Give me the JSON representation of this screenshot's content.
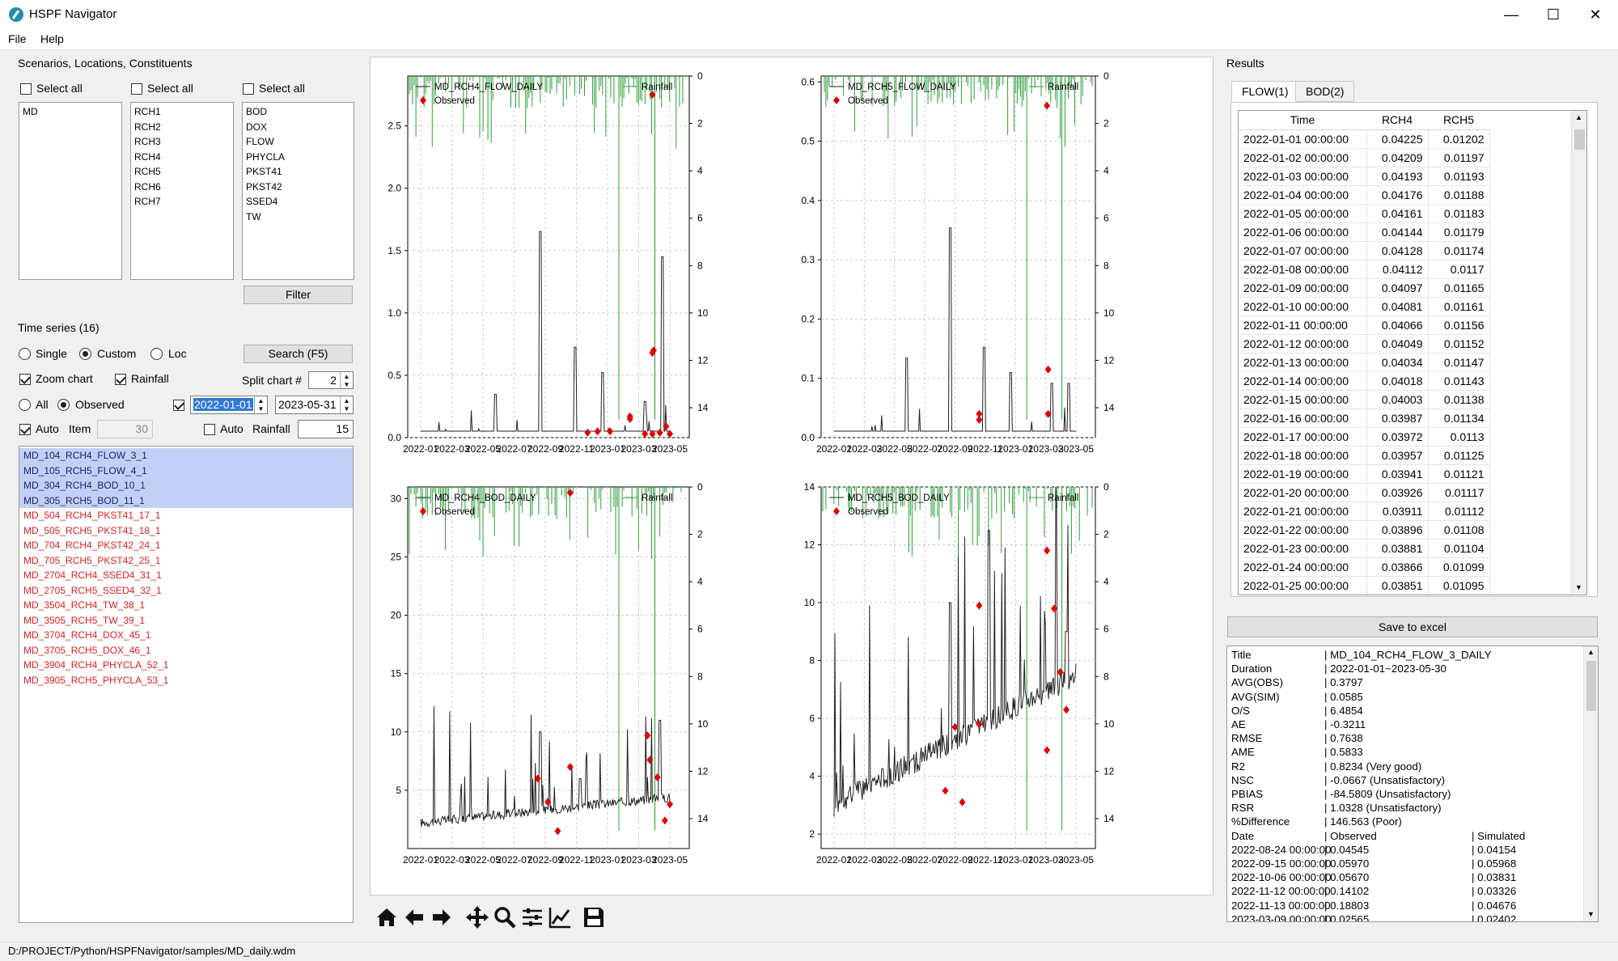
{
  "app": {
    "title": "HSPF Navigator"
  },
  "window_controls": {
    "minimize": "—",
    "maximize": "☐",
    "close": "✕"
  },
  "menu": [
    "File",
    "Help"
  ],
  "scenarios": {
    "title": "Scenarios, Locations, Constituents",
    "select_all": "Select all",
    "scenarios": [
      "MD"
    ],
    "locations": [
      "RCH1",
      "RCH2",
      "RCH3",
      "RCH4",
      "RCH5",
      "RCH6",
      "RCH7"
    ],
    "constituents": [
      "BOD",
      "DOX",
      "FLOW",
      "PHYCLA",
      "PKST41",
      "PKST42",
      "SSED4",
      "TW"
    ],
    "filter": "Filter"
  },
  "timeseries": {
    "title": "Time series (16)",
    "radios_mode": [
      "Single",
      "Custom",
      "Loc"
    ],
    "search": "Search (F5)",
    "zoom_chart": "Zoom chart",
    "rainfall": "Rainfall",
    "split_chart_label": "Split chart #",
    "split_chart_value": "2",
    "radios_data": [
      "All",
      "Observed"
    ],
    "start_date": "2022-01-01",
    "end_date": "2023-05-31",
    "auto": "Auto",
    "item": "Item",
    "item_value": "30",
    "auto2": "Auto",
    "rainfall2": "Rainfall",
    "rainfall_value": "15",
    "items": [
      {
        "name": "MD_104_RCH4_FLOW_3_1",
        "state": "sel"
      },
      {
        "name": "MD_105_RCH5_FLOW_4_1",
        "state": "sel"
      },
      {
        "name": "MD_304_RCH4_BOD_10_1",
        "state": "sel"
      },
      {
        "name": "MD_305_RCH5_BOD_11_1",
        "state": "sel"
      },
      {
        "name": "MD_504_RCH4_PKST41_17_1",
        "state": "red"
      },
      {
        "name": "MD_505_RCH5_PKST41_18_1",
        "state": "red"
      },
      {
        "name": "MD_704_RCH4_PKST42_24_1",
        "state": "red"
      },
      {
        "name": "MD_705_RCH5_PKST42_25_1",
        "state": "red"
      },
      {
        "name": "MD_2704_RCH4_SSED4_31_1",
        "state": "red"
      },
      {
        "name": "MD_2705_RCH5_SSED4_32_1",
        "state": "red"
      },
      {
        "name": "MD_3504_RCH4_TW_38_1",
        "state": "red"
      },
      {
        "name": "MD_3505_RCH5_TW_39_1",
        "state": "red"
      },
      {
        "name": "MD_3704_RCH4_DOX_45_1",
        "state": "red"
      },
      {
        "name": "MD_3705_RCH5_DOX_46_1",
        "state": "red"
      },
      {
        "name": "MD_3904_RCH4_PHYCLA_52_1",
        "state": "red"
      },
      {
        "name": "MD_3905_RCH5_PHYCLA_53_1",
        "state": "red"
      }
    ]
  },
  "chart_data": [
    {
      "type": "line",
      "series": [
        {
          "name": "MD_RCH4_FLOW_DAILY"
        },
        {
          "name": "Observed"
        },
        {
          "name": "Rainfall"
        }
      ],
      "ylim": [
        0,
        2.9
      ],
      "yticks": [
        "0.0",
        "0.5",
        "1.0",
        "1.5",
        "2.0",
        "2.5"
      ],
      "y2ticks": [
        "0",
        "2",
        "4",
        "6",
        "8",
        "10",
        "12",
        "14"
      ],
      "xticks": [
        "2022-01",
        "2022-03",
        "2022-05",
        "2022-07",
        "2022-09",
        "2022-11",
        "2023-01",
        "2023-03",
        "2023-05"
      ],
      "observed": [
        [
          0.67,
          0.04
        ],
        [
          0.71,
          0.05
        ],
        [
          0.76,
          0.05
        ],
        [
          0.84,
          0.17
        ],
        [
          0.84,
          0.15
        ],
        [
          0.9,
          0.03
        ],
        [
          0.93,
          0.03
        ],
        [
          0.935,
          0.7
        ],
        [
          0.93,
          0.68
        ],
        [
          0.96,
          0.04
        ],
        [
          0.985,
          0.09
        ],
        [
          1.0,
          0.03
        ],
        [
          0.93,
          2.75
        ]
      ]
    },
    {
      "type": "line",
      "series": [
        {
          "name": "MD_RCH5_FLOW_DAILY"
        },
        {
          "name": "Observed"
        },
        {
          "name": "Rainfall"
        }
      ],
      "ylim": [
        0,
        0.61
      ],
      "yticks": [
        "0.0",
        "0.1",
        "0.2",
        "0.3",
        "0.4",
        "0.5",
        "0.6"
      ],
      "y2ticks": [
        "0",
        "2",
        "4",
        "6",
        "8",
        "10",
        "12",
        "14"
      ],
      "xticks": [
        "2022-01",
        "2022-03",
        "2022-05",
        "2022-07",
        "2022-09",
        "2022-11",
        "2023-01",
        "2023-03",
        "2023-05"
      ],
      "observed": [
        [
          0.6,
          0.04
        ],
        [
          0.6,
          0.03
        ],
        [
          0.885,
          0.115
        ],
        [
          0.885,
          0.04
        ],
        [
          0.88,
          0.56
        ]
      ]
    },
    {
      "type": "line",
      "series": [
        {
          "name": "MD_RCH4_BOD_DAILY"
        },
        {
          "name": "Observed"
        },
        {
          "name": "Rainfall"
        }
      ],
      "ylim": [
        0,
        31
      ],
      "yticks": [
        "5",
        "10",
        "15",
        "20",
        "25",
        "30"
      ],
      "y2ticks": [
        "0",
        "2",
        "4",
        "6",
        "8",
        "10",
        "12",
        "14"
      ],
      "xticks": [
        "2022-01",
        "2022-03",
        "2022-05",
        "2022-07",
        "2022-09",
        "2022-11",
        "2023-01",
        "2023-03",
        "2023-05"
      ],
      "observed": [
        [
          0.47,
          6
        ],
        [
          0.51,
          4
        ],
        [
          0.55,
          1.5
        ],
        [
          0.6,
          7
        ],
        [
          0.6,
          30.5
        ],
        [
          0.91,
          9.7
        ],
        [
          0.92,
          7.6
        ],
        [
          0.95,
          6.1
        ],
        [
          0.98,
          2.4
        ],
        [
          1.0,
          3.8
        ]
      ]
    },
    {
      "type": "line",
      "series": [
        {
          "name": "MD_RCH5_BOD_DAILY"
        },
        {
          "name": "Observed"
        },
        {
          "name": "Rainfall"
        }
      ],
      "ylim": [
        1.5,
        14
      ],
      "yticks": [
        "2",
        "4",
        "6",
        "8",
        "10",
        "12",
        "14"
      ],
      "y2ticks": [
        "0",
        "2",
        "4",
        "6",
        "8",
        "10",
        "12",
        "14"
      ],
      "xticks": [
        "2022-01",
        "2022-03",
        "2022-05",
        "2022-07",
        "2022-09",
        "2022-11",
        "2023-01",
        "2023-03",
        "2023-05"
      ],
      "observed": [
        [
          0.46,
          3.5
        ],
        [
          0.5,
          5.7
        ],
        [
          0.53,
          3.1
        ],
        [
          0.6,
          5.8
        ],
        [
          0.6,
          9.9
        ],
        [
          0.88,
          11.8
        ],
        [
          0.88,
          4.9
        ],
        [
          0.91,
          9.8
        ],
        [
          0.935,
          7.6
        ],
        [
          0.96,
          6.3
        ]
      ]
    }
  ],
  "results": {
    "title": "Results",
    "tabs": [
      "FLOW(1)",
      "BOD(2)"
    ],
    "columns": [
      "Time",
      "RCH4",
      "RCH5"
    ],
    "rows": [
      [
        "2022-01-01 00:00:00",
        "0.04225",
        "0.01202"
      ],
      [
        "2022-01-02 00:00:00",
        "0.04209",
        "0.01197"
      ],
      [
        "2022-01-03 00:00:00",
        "0.04193",
        "0.01193"
      ],
      [
        "2022-01-04 00:00:00",
        "0.04176",
        "0.01188"
      ],
      [
        "2022-01-05 00:00:00",
        "0.04161",
        "0.01183"
      ],
      [
        "2022-01-06 00:00:00",
        "0.04144",
        "0.01179"
      ],
      [
        "2022-01-07 00:00:00",
        "0.04128",
        "0.01174"
      ],
      [
        "2022-01-08 00:00:00",
        "0.04112",
        "0.0117"
      ],
      [
        "2022-01-09 00:00:00",
        "0.04097",
        "0.01165"
      ],
      [
        "2022-01-10 00:00:00",
        "0.04081",
        "0.01161"
      ],
      [
        "2022-01-11 00:00:00",
        "0.04066",
        "0.01156"
      ],
      [
        "2022-01-12 00:00:00",
        "0.04049",
        "0.01152"
      ],
      [
        "2022-01-13 00:00:00",
        "0.04034",
        "0.01147"
      ],
      [
        "2022-01-14 00:00:00",
        "0.04018",
        "0.01143"
      ],
      [
        "2022-01-15 00:00:00",
        "0.04003",
        "0.01138"
      ],
      [
        "2022-01-16 00:00:00",
        "0.03987",
        "0.01134"
      ],
      [
        "2022-01-17 00:00:00",
        "0.03972",
        "0.0113"
      ],
      [
        "2022-01-18 00:00:00",
        "0.03957",
        "0.01125"
      ],
      [
        "2022-01-19 00:00:00",
        "0.03941",
        "0.01121"
      ],
      [
        "2022-01-20 00:00:00",
        "0.03926",
        "0.01117"
      ],
      [
        "2022-01-21 00:00:00",
        "0.03911",
        "0.01112"
      ],
      [
        "2022-01-22 00:00:00",
        "0.03896",
        "0.01108"
      ],
      [
        "2022-01-23 00:00:00",
        "0.03881",
        "0.01104"
      ],
      [
        "2022-01-24 00:00:00",
        "0.03866",
        "0.01099"
      ],
      [
        "2022-01-25 00:00:00",
        "0.03851",
        "0.01095"
      ]
    ],
    "save": "Save to excel"
  },
  "stats": [
    [
      "Title",
      "| MD_104_RCH4_FLOW_3_DAILY",
      ""
    ],
    [
      "Duration",
      "| 2022-01-01~2023-05-30",
      ""
    ],
    [
      "AVG(OBS)",
      "| 0.3797",
      ""
    ],
    [
      "AVG(SIM)",
      "| 0.0585",
      ""
    ],
    [
      "O/S",
      "| 6.4854",
      ""
    ],
    [
      "AE",
      "| -0.3211",
      ""
    ],
    [
      "RMSE",
      "| 0.7638",
      ""
    ],
    [
      "AME",
      "| 0.5833",
      ""
    ],
    [
      "R2",
      "| 0.8234  (Very good)",
      ""
    ],
    [
      "NSC",
      "| -0.0667  (Unsatisfactory)",
      ""
    ],
    [
      "PBIAS",
      "| -84.5809  (Unsatisfactory)",
      ""
    ],
    [
      "RSR",
      "| 1.0328  (Unsatisfactory)",
      ""
    ],
    [
      "%Difference",
      "| 146.563  (Poor)",
      ""
    ],
    [
      "Date",
      "| Observed",
      "| Simulated"
    ],
    [
      "2022-08-24 00:00:00",
      "| 0.04545",
      "| 0.04154"
    ],
    [
      "2022-09-15 00:00:00",
      "| 0.05970",
      "| 0.05968"
    ],
    [
      "2022-10-06 00:00:00",
      "| 0.05670",
      "| 0.03831"
    ],
    [
      "2022-11-12 00:00:00",
      "| 0.14102",
      "| 0.03326"
    ],
    [
      "2022-11-13 00:00:00",
      "| 0.18803",
      "| 0.04676"
    ],
    [
      "2023-03-09 00:00:00",
      "| 0.02565",
      "| 0.02402"
    ]
  ],
  "status": "D:/PROJECT/Python/HSPFNavigator/samples/MD_daily.wdm",
  "colors": {
    "sim": "#222222",
    "obs": "#e00000",
    "rain": "#2e9e3a",
    "selection": "#c3d0f5",
    "red_item": "#e02020"
  }
}
